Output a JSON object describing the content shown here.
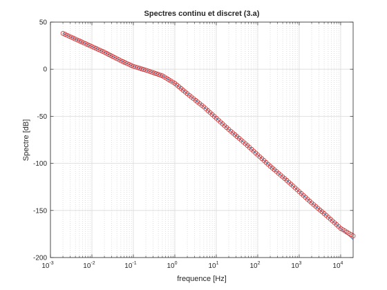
{
  "chart_data": {
    "type": "scatter",
    "title": "Spectres continu et discret (3.a)",
    "xlabel": "frequence [Hz]",
    "ylabel": "Spectre [dB]",
    "xscale": "log",
    "xlim": [
      0.001,
      20000
    ],
    "ylim": [
      -200,
      50
    ],
    "xticks": [
      0.001,
      0.01,
      0.1,
      1,
      10,
      100,
      1000,
      10000
    ],
    "xtick_labels": [
      {
        "base": "10",
        "exp": "-3"
      },
      {
        "base": "10",
        "exp": "-2"
      },
      {
        "base": "10",
        "exp": "-1"
      },
      {
        "base": "10",
        "exp": "0"
      },
      {
        "base": "10",
        "exp": "1"
      },
      {
        "base": "10",
        "exp": "2"
      },
      {
        "base": "10",
        "exp": "3"
      },
      {
        "base": "10",
        "exp": "4"
      }
    ],
    "yticks": [
      50,
      0,
      -50,
      -100,
      -150,
      -200
    ],
    "ytick_labels": [
      "50",
      "0",
      "-50",
      "-100",
      "-150",
      "-200"
    ],
    "grid": true,
    "legend": "none",
    "series": [
      {
        "style": "line",
        "color": "#4a90c8",
        "x": [
          0.002,
          0.005,
          0.01,
          0.02,
          0.05,
          0.1,
          0.2,
          0.5,
          1,
          2,
          5,
          10,
          20,
          50,
          100,
          200,
          500,
          1000,
          2000,
          5000,
          10000,
          20000
        ],
        "y": [
          38,
          30,
          24,
          18,
          9,
          3,
          -1,
          -7,
          -15,
          -26,
          -40,
          -52,
          -64,
          -79,
          -91,
          -103,
          -118,
          -130,
          -142,
          -157,
          -169,
          -181
        ]
      },
      {
        "style": "markers",
        "marker": "circle",
        "color": "#cc2a2a",
        "x": [
          0.002,
          0.005,
          0.01,
          0.02,
          0.05,
          0.1,
          0.2,
          0.5,
          1,
          2,
          5,
          10,
          20,
          50,
          100,
          200,
          500,
          1000,
          2000,
          5000,
          10000,
          20000
        ],
        "y": [
          38,
          30,
          24,
          18,
          9,
          3,
          -1,
          -7,
          -15,
          -26,
          -40,
          -52,
          -64,
          -79,
          -91,
          -103,
          -118,
          -130,
          -142,
          -157,
          -169,
          -177
        ]
      }
    ]
  }
}
